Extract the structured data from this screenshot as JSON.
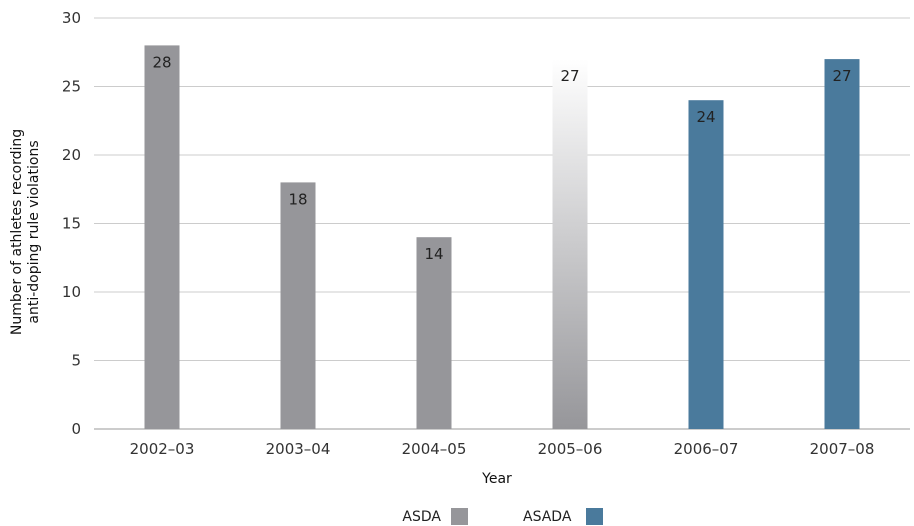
{
  "chart_data": {
    "type": "bar",
    "categories": [
      "2002–03",
      "2003–04",
      "2004–05",
      "2005–06",
      "2006–07",
      "2007–08"
    ],
    "values": [
      28,
      18,
      14,
      27,
      24,
      27
    ],
    "series_assignment": [
      "ASDA",
      "ASDA",
      "ASDA",
      "ASDA/ASADA",
      "ASADA",
      "ASADA"
    ],
    "data_labels": [
      "28",
      "18",
      "14",
      "27",
      "24",
      "27"
    ],
    "xlabel": "Year",
    "ylabel_line1": "Number of athletes recording",
    "ylabel_line2": "anti-doping rule violations",
    "ylim": [
      0,
      30
    ],
    "yticks": [
      0,
      5,
      10,
      15,
      20,
      25,
      30
    ],
    "grid": true,
    "legend_placement": "bottom-center",
    "legend": [
      {
        "name": "ASDA",
        "color": "#96969a"
      },
      {
        "name": "ASADA",
        "color": "#4a7a9c"
      }
    ],
    "colors": {
      "asda": "#96969a",
      "asada": "#4a7a9c",
      "transition_top": "#ffffff",
      "transition_bottom": "#96969a",
      "grid": "#cccccc",
      "axis": "#999999"
    }
  }
}
